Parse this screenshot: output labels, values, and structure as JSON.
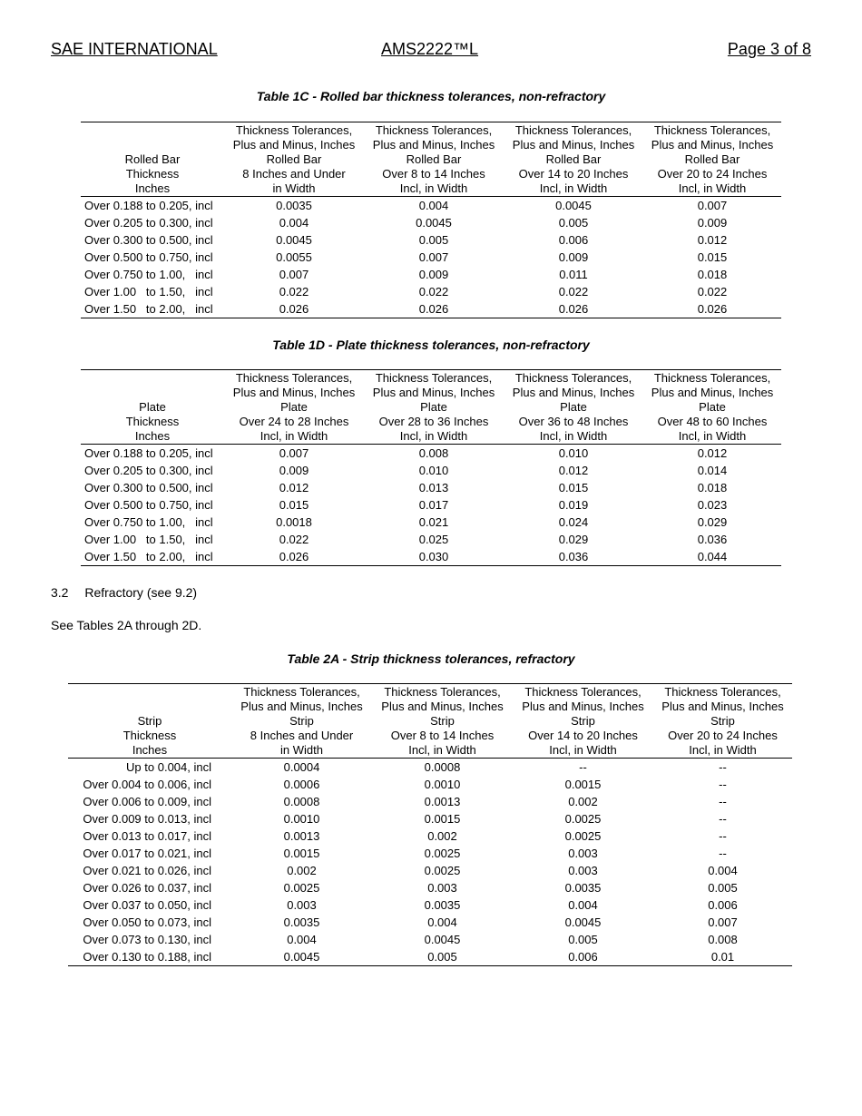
{
  "header": {
    "left": "SAE INTERNATIONAL",
    "center": "AMS2222™L",
    "right": "Page 3 of 8"
  },
  "tables": [
    {
      "title": "Table 1C - Rolled bar thickness tolerances, non-refractory",
      "headers": [
        [
          "Rolled Bar",
          "Thickness",
          "Inches"
        ],
        [
          "Thickness Tolerances,",
          "Plus and Minus, Inches",
          "Rolled Bar",
          "8 Inches and Under",
          "in Width"
        ],
        [
          "Thickness Tolerances,",
          "Plus and Minus, Inches",
          "Rolled Bar",
          "Over 8 to 14 Inches",
          "Incl, in Width"
        ],
        [
          "Thickness Tolerances,",
          "Plus and Minus, Inches",
          "Rolled Bar",
          "Over 14 to 20 Inches",
          "Incl, in Width"
        ],
        [
          "Thickness Tolerances,",
          "Plus and Minus, Inches",
          "Rolled Bar",
          "Over 20 to 24 Inches",
          "Incl, in Width"
        ]
      ],
      "rows": [
        [
          "Over 0.188 to 0.205, incl",
          "0.0035",
          "0.004",
          "0.0045",
          "0.007"
        ],
        [
          "Over 0.205 to 0.300, incl",
          "0.004",
          "0.0045",
          "0.005",
          "0.009"
        ],
        [
          "Over 0.300 to 0.500, incl",
          "0.0045",
          "0.005",
          "0.006",
          "0.012"
        ],
        [
          "Over 0.500 to 0.750, incl",
          "0.0055",
          "0.007",
          "0.009",
          "0.015"
        ],
        [
          "Over 0.750 to 1.00,   incl",
          "0.007",
          "0.009",
          "0.011",
          "0.018"
        ],
        [
          "Over 1.00   to 1.50,   incl",
          "0.022",
          "0.022",
          "0.022",
          "0.022"
        ],
        [
          "Over 1.50   to 2.00,   incl",
          "0.026",
          "0.026",
          "0.026",
          "0.026"
        ]
      ]
    },
    {
      "title": "Table 1D - Plate thickness tolerances, non-refractory",
      "headers": [
        [
          "Plate",
          "Thickness",
          "Inches"
        ],
        [
          "Thickness Tolerances,",
          "Plus and Minus, Inches",
          "Plate",
          "Over 24 to 28 Inches",
          "Incl, in Width"
        ],
        [
          "Thickness Tolerances,",
          "Plus and Minus, Inches",
          "Plate",
          "Over 28 to 36 Inches",
          "Incl, in Width"
        ],
        [
          "Thickness Tolerances,",
          "Plus and Minus, Inches",
          "Plate",
          "Over 36 to 48 Inches",
          "Incl, in Width"
        ],
        [
          "Thickness Tolerances,",
          "Plus and Minus, Inches",
          "Plate",
          "Over 48 to 60 Inches",
          "Incl, in Width"
        ]
      ],
      "rows": [
        [
          "Over 0.188 to 0.205, incl",
          "0.007",
          "0.008",
          "0.010",
          "0.012"
        ],
        [
          "Over 0.205 to 0.300, incl",
          "0.009",
          "0.010",
          "0.012",
          "0.014"
        ],
        [
          "Over 0.300 to 0.500, incl",
          "0.012",
          "0.013",
          "0.015",
          "0.018"
        ],
        [
          "Over 0.500 to 0.750, incl",
          "0.015",
          "0.017",
          "0.019",
          "0.023"
        ],
        [
          "Over 0.750 to 1.00,   incl",
          "0.0018",
          "0.021",
          "0.024",
          "0.029"
        ],
        [
          "Over 1.00   to 1.50,   incl",
          "0.022",
          "0.025",
          "0.029",
          "0.036"
        ],
        [
          "Over 1.50   to 2.00,   incl",
          "0.026",
          "0.030",
          "0.036",
          "0.044"
        ]
      ]
    },
    {
      "title": "Table 2A - Strip thickness tolerances, refractory",
      "headers": [
        [
          "Strip",
          "Thickness",
          "Inches"
        ],
        [
          "Thickness Tolerances,",
          "Plus and Minus, Inches",
          "Strip",
          "8 Inches and Under",
          "in Width"
        ],
        [
          "Thickness Tolerances,",
          "Plus and Minus, Inches",
          "Strip",
          "Over 8 to 14 Inches",
          "Incl, in Width"
        ],
        [
          "Thickness Tolerances,",
          "Plus and Minus, Inches",
          "Strip",
          "Over 14 to 20 Inches",
          "Incl, in Width"
        ],
        [
          "Thickness Tolerances,",
          "Plus and Minus, Inches",
          "Strip",
          "Over 20 to 24 Inches",
          "Incl, in Width"
        ]
      ],
      "rows": [
        [
          "Up to 0.004, incl",
          "0.0004",
          "0.0008",
          "--",
          "--"
        ],
        [
          "Over 0.004 to 0.006, incl",
          "0.0006",
          "0.0010",
          "0.0015",
          "--"
        ],
        [
          "Over 0.006 to 0.009, incl",
          "0.0008",
          "0.0013",
          "0.002",
          "--"
        ],
        [
          "Over 0.009 to 0.013, incl",
          "0.0010",
          "0.0015",
          "0.0025",
          "--"
        ],
        [
          "Over 0.013 to 0.017, incl",
          "0.0013",
          "0.002",
          "0.0025",
          "--"
        ],
        [
          "Over 0.017 to 0.021, incl",
          "0.0015",
          "0.0025",
          "0.003",
          "--"
        ],
        [
          "Over 0.021 to 0.026, incl",
          "0.002",
          "0.0025",
          "0.003",
          "0.004"
        ],
        [
          "Over 0.026 to 0.037, incl",
          "0.0025",
          "0.003",
          "0.0035",
          "0.005"
        ],
        [
          "Over 0.037 to 0.050, incl",
          "0.003",
          "0.0035",
          "0.004",
          "0.006"
        ],
        [
          "Over 0.050 to 0.073, incl",
          "0.0035",
          "0.004",
          "0.0045",
          "0.007"
        ],
        [
          "Over 0.073 to 0.130, incl",
          "0.004",
          "0.0045",
          "0.005",
          "0.008"
        ],
        [
          "Over 0.130 to 0.188, incl",
          "0.0045",
          "0.005",
          "0.006",
          "0.01"
        ]
      ]
    }
  ],
  "section": {
    "heading_number": "3.2",
    "heading_text": "Refractory (see 9.2)",
    "body": "See Tables 2A through 2D."
  }
}
